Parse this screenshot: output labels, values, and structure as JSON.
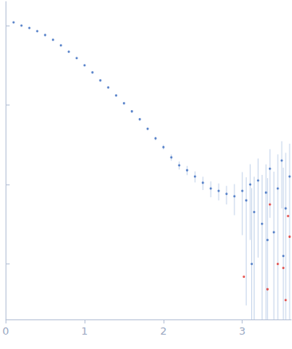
{
  "chart_data": {
    "type": "scatter",
    "log": "y",
    "tick_labels": "x",
    "grid": false,
    "xlim": [
      0,
      3.62
    ],
    "xticks": [
      0,
      1,
      2,
      3
    ],
    "ylim": [
      0.0002,
      2
    ],
    "yticks": [
      0.001,
      0.01,
      0.1,
      1
    ],
    "series": [
      {
        "color": "#3a6bbf",
        "marker": "circle",
        "x": [
          0.1,
          0.2,
          0.3,
          0.4,
          0.5,
          0.6,
          0.7,
          0.8,
          0.9,
          1.0,
          1.1,
          1.2,
          1.3,
          1.4,
          1.5,
          1.6,
          1.7,
          1.8,
          1.9,
          2.0,
          2.1,
          2.2,
          2.3,
          2.4,
          2.5,
          2.6,
          2.7,
          2.8,
          2.9,
          3.0,
          3.05,
          3.1,
          3.12,
          3.15,
          3.2,
          3.25,
          3.3,
          3.32,
          3.35,
          3.4,
          3.45,
          3.5,
          3.52,
          3.55,
          3.6
        ],
        "values": [
          1.096,
          1.0,
          0.933,
          0.851,
          0.759,
          0.661,
          0.562,
          0.468,
          0.389,
          0.316,
          0.257,
          0.204,
          0.166,
          0.132,
          0.105,
          0.0832,
          0.0661,
          0.0501,
          0.038,
          0.0295,
          0.0219,
          0.0174,
          0.0151,
          0.0126,
          0.0105,
          0.0089,
          0.0083,
          0.0076,
          0.0071,
          0.0083,
          0.0063,
          0.01,
          0.001,
          0.0045,
          0.0112,
          0.0032,
          0.0079,
          0.002,
          0.0158,
          0.0025,
          0.0089,
          0.02,
          0.00126,
          0.005,
          0.0126
        ],
        "errors": [
          0.01,
          0.01,
          0.01,
          0.008,
          0.007,
          0.006,
          0.005,
          0.005,
          0.004,
          0.004,
          0.003,
          0.003,
          0.002,
          0.002,
          0.002,
          0.002,
          0.002,
          0.002,
          0.002,
          0.002,
          0.002,
          0.002,
          0.002,
          0.002,
          0.002,
          0.002,
          0.002,
          0.002,
          0.003,
          0.006,
          0.006,
          0.008,
          0.008,
          0.008,
          0.01,
          0.01,
          0.01,
          0.01,
          0.012,
          0.012,
          0.015,
          0.015,
          0.015,
          0.02,
          0.02
        ]
      },
      {
        "color": "#e0302a",
        "marker": "circle",
        "x": [
          3.02,
          3.32,
          3.35,
          3.45,
          3.52,
          3.55,
          3.58,
          3.6
        ],
        "values": [
          0.00069,
          0.00048,
          0.0056,
          0.001,
          0.00089,
          0.00035,
          0.004,
          0.0022
        ]
      }
    ]
  }
}
